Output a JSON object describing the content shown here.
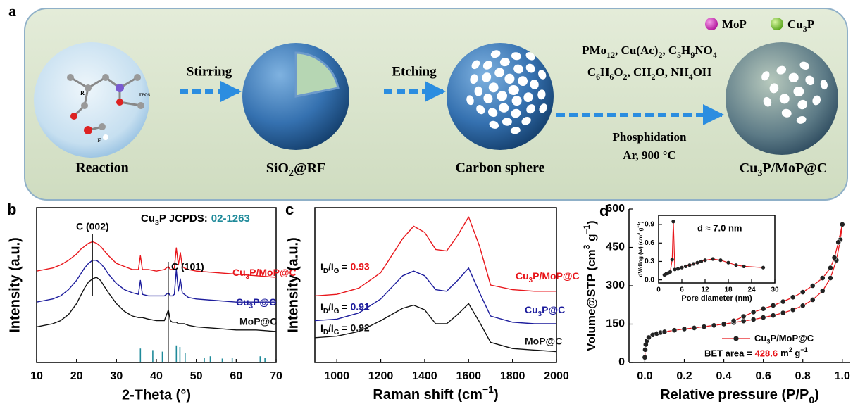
{
  "schematic": {
    "panel_label": "a",
    "legend": [
      "MoP",
      "Cu_3P"
    ],
    "steps": [
      "Stirring",
      "Etching"
    ],
    "reagents": [
      "PMo_12, Cu(Ac)_2, C_5H_9NO_4",
      "C_6H_6O_2, CH_2O, NH_4OH"
    ],
    "conditions": [
      "Phosphidation",
      "Ar, 900 °C"
    ],
    "stages": [
      "Reaction",
      "SiO_2@RF",
      "Carbon sphere",
      "Cu_3P/MoP@C"
    ],
    "molecule_labels": [
      "R",
      "F",
      "TEOS"
    ]
  },
  "chart_data": [
    {
      "type": "line",
      "panel_label": "b",
      "x_label": "2-Theta (°)",
      "y_label": "Intensity (a.u.)",
      "xlim": [
        10,
        70
      ],
      "xticks": [
        10,
        20,
        30,
        40,
        50,
        60,
        70
      ],
      "ylim": [
        0,
        10
      ],
      "annotations": [
        "C (002)",
        "C (101)"
      ],
      "reference": {
        "label": "Cu_3P JCPDS:",
        "card": "02-1263",
        "color": "#1f8a9a",
        "x": [
          36,
          39.1,
          41.5,
          45,
          45.9,
          47.2,
          52,
          53.5,
          56.5,
          59,
          66,
          67.2
        ],
        "values": [
          0.9,
          0.8,
          0.7,
          1.1,
          1.0,
          0.6,
          0.3,
          0.4,
          0.25,
          0.3,
          0.4,
          0.3
        ]
      },
      "x": [
        10,
        12,
        14,
        16,
        18,
        20,
        21,
        22,
        23,
        24,
        25,
        26,
        27,
        28,
        30,
        32,
        34,
        35.5,
        36,
        36.5,
        38,
        40,
        42,
        43,
        43.5,
        44,
        44.5,
        45,
        45.5,
        46,
        46.5,
        47,
        48,
        50,
        55,
        60,
        65,
        70
      ],
      "series": [
        {
          "name": "Cu_3P/MoP@C",
          "color": "#e8161b",
          "values": [
            5.9,
            6.0,
            6.1,
            6.3,
            6.6,
            7.0,
            7.3,
            7.5,
            7.7,
            7.8,
            7.7,
            7.5,
            7.2,
            6.9,
            6.4,
            6.2,
            6.0,
            6.0,
            6.9,
            6.0,
            6.0,
            5.9,
            6.0,
            6.2,
            6.0,
            6.0,
            6.1,
            7.4,
            6.3,
            7.1,
            6.2,
            6.1,
            6.0,
            5.9,
            5.8,
            5.7,
            5.6,
            5.5
          ]
        },
        {
          "name": "Cu_3P@C",
          "color": "#1c1c9c",
          "values": [
            3.9,
            4.0,
            4.1,
            4.3,
            4.7,
            5.3,
            5.7,
            6.1,
            6.4,
            6.6,
            6.6,
            6.4,
            6.1,
            5.7,
            5.1,
            4.7,
            4.5,
            4.4,
            5.3,
            4.4,
            4.3,
            4.3,
            4.3,
            4.5,
            4.3,
            4.3,
            4.4,
            6.0,
            4.6,
            5.4,
            4.5,
            4.4,
            4.2,
            4.1,
            4.0,
            3.9,
            3.9,
            3.9
          ]
        },
        {
          "name": "MoP@C",
          "color": "#111111",
          "values": [
            2.3,
            2.4,
            2.5,
            2.7,
            3.1,
            3.8,
            4.3,
            4.8,
            5.2,
            5.4,
            5.5,
            5.3,
            4.9,
            4.5,
            3.8,
            3.3,
            3.0,
            2.9,
            2.9,
            2.9,
            2.8,
            2.7,
            2.7,
            3.4,
            2.7,
            2.6,
            2.6,
            2.6,
            2.5,
            2.5,
            2.5,
            2.5,
            2.4,
            2.3,
            2.2,
            2.1,
            2.1,
            2.0
          ]
        }
      ]
    },
    {
      "type": "line",
      "panel_label": "c",
      "x_label": "Raman shift (cm^−1)",
      "y_label": "Intensity (a.u.)",
      "xlim": [
        900,
        2000
      ],
      "xticks": [
        1000,
        1200,
        1400,
        1600,
        1800,
        2000
      ],
      "ylim": [
        0,
        10
      ],
      "ratio_label": "I_D/I_G =",
      "x": [
        900,
        1000,
        1100,
        1200,
        1300,
        1350,
        1400,
        1450,
        1500,
        1550,
        1600,
        1650,
        1700,
        1800,
        1900,
        2000
      ],
      "series": [
        {
          "name": "Cu_3P/MoP@C",
          "color": "#e8161b",
          "ratio": 0.93,
          "values": [
            4.3,
            4.4,
            4.8,
            5.8,
            8.0,
            8.8,
            8.4,
            7.3,
            7.2,
            8.2,
            9.4,
            7.5,
            5.0,
            4.7,
            4.6,
            4.6
          ]
        },
        {
          "name": "Cu_3P@C",
          "color": "#1c1c9c",
          "ratio": 0.91,
          "values": [
            2.7,
            2.8,
            3.2,
            4.1,
            5.6,
            5.9,
            5.6,
            4.7,
            4.6,
            5.3,
            6.1,
            4.5,
            3.0,
            2.6,
            2.5,
            2.5
          ]
        },
        {
          "name": "MoP@C",
          "color": "#111111",
          "ratio": 0.92,
          "values": [
            1.6,
            1.7,
            2.0,
            2.7,
            3.5,
            3.7,
            3.4,
            2.5,
            2.5,
            3.1,
            3.8,
            2.6,
            1.3,
            0.9,
            0.8,
            0.7
          ]
        }
      ]
    },
    {
      "type": "scatter",
      "panel_label": "d",
      "x_label": "Relative pressure (P/P_0)",
      "y_label": "Volume@STP (cm^3 g^−1)",
      "xlim": [
        -0.08,
        1.04
      ],
      "xticks": [
        {
          "value": 0,
          "label": "0.0"
        },
        {
          "value": 0.2,
          "label": "0.2"
        },
        {
          "value": 0.4,
          "label": "0.4"
        },
        {
          "value": 0.6,
          "label": "0.6"
        },
        {
          "value": 0.8,
          "label": "0.8"
        },
        {
          "value": 1.0,
          "label": "1.0"
        }
      ],
      "ylim": [
        0,
        600
      ],
      "yticks": [
        0,
        150,
        300,
        450,
        600
      ],
      "bet_label": "BET area =",
      "bet_value": 428.6,
      "bet_unit": "m^2 g^−1",
      "series": [
        {
          "name": "Cu_3P/MoP@C",
          "color": "#e8161b",
          "x": [
            0.0,
            0.002,
            0.005,
            0.01,
            0.02,
            0.04,
            0.06,
            0.08,
            0.1,
            0.15,
            0.2,
            0.25,
            0.3,
            0.35,
            0.4,
            0.45,
            0.5,
            0.55,
            0.6,
            0.65,
            0.7,
            0.75,
            0.8,
            0.85,
            0.9,
            0.94,
            0.97,
            0.99,
            1.0,
            0.98,
            0.96,
            0.94,
            0.9,
            0.85,
            0.8,
            0.75,
            0.7,
            0.65,
            0.6,
            0.55,
            0.5,
            0.45
          ],
          "values": [
            20,
            50,
            70,
            85,
            98,
            108,
            113,
            117,
            120,
            126,
            131,
            135,
            140,
            145,
            150,
            156,
            162,
            168,
            176,
            184,
            194,
            206,
            222,
            245,
            280,
            330,
            400,
            480,
            540,
            470,
            410,
            370,
            330,
            300,
            275,
            255,
            238,
            223,
            210,
            197,
            180,
            163
          ]
        }
      ],
      "inset": {
        "type": "line",
        "x_label": "Pore diameter (nm)",
        "y_label": "dV/dlog (w) (cm^3 g^−1)",
        "annotation": "d ≈ 7.0 nm",
        "color": "#e8161b",
        "xlim": [
          0,
          30
        ],
        "xticks": [
          0,
          6,
          12,
          18,
          24,
          30
        ],
        "ylim": [
          -0.05,
          1.05
        ],
        "yticks": [
          {
            "value": 0,
            "label": "0.0"
          },
          {
            "value": 0.3,
            "label": "0.3"
          },
          {
            "value": 0.6,
            "label": "0.6"
          },
          {
            "value": 0.9,
            "label": "0.9"
          }
        ],
        "x": [
          1.5,
          2,
          2.5,
          3,
          3.5,
          3.8,
          4.2,
          5,
          6,
          7,
          8,
          9,
          10,
          11,
          12,
          14,
          16,
          18,
          20,
          22,
          27
        ],
        "values": [
          0.08,
          0.1,
          0.11,
          0.13,
          0.33,
          0.95,
          0.17,
          0.18,
          0.2,
          0.22,
          0.24,
          0.26,
          0.28,
          0.3,
          0.32,
          0.34,
          0.32,
          0.28,
          0.24,
          0.22,
          0.2
        ]
      }
    }
  ]
}
